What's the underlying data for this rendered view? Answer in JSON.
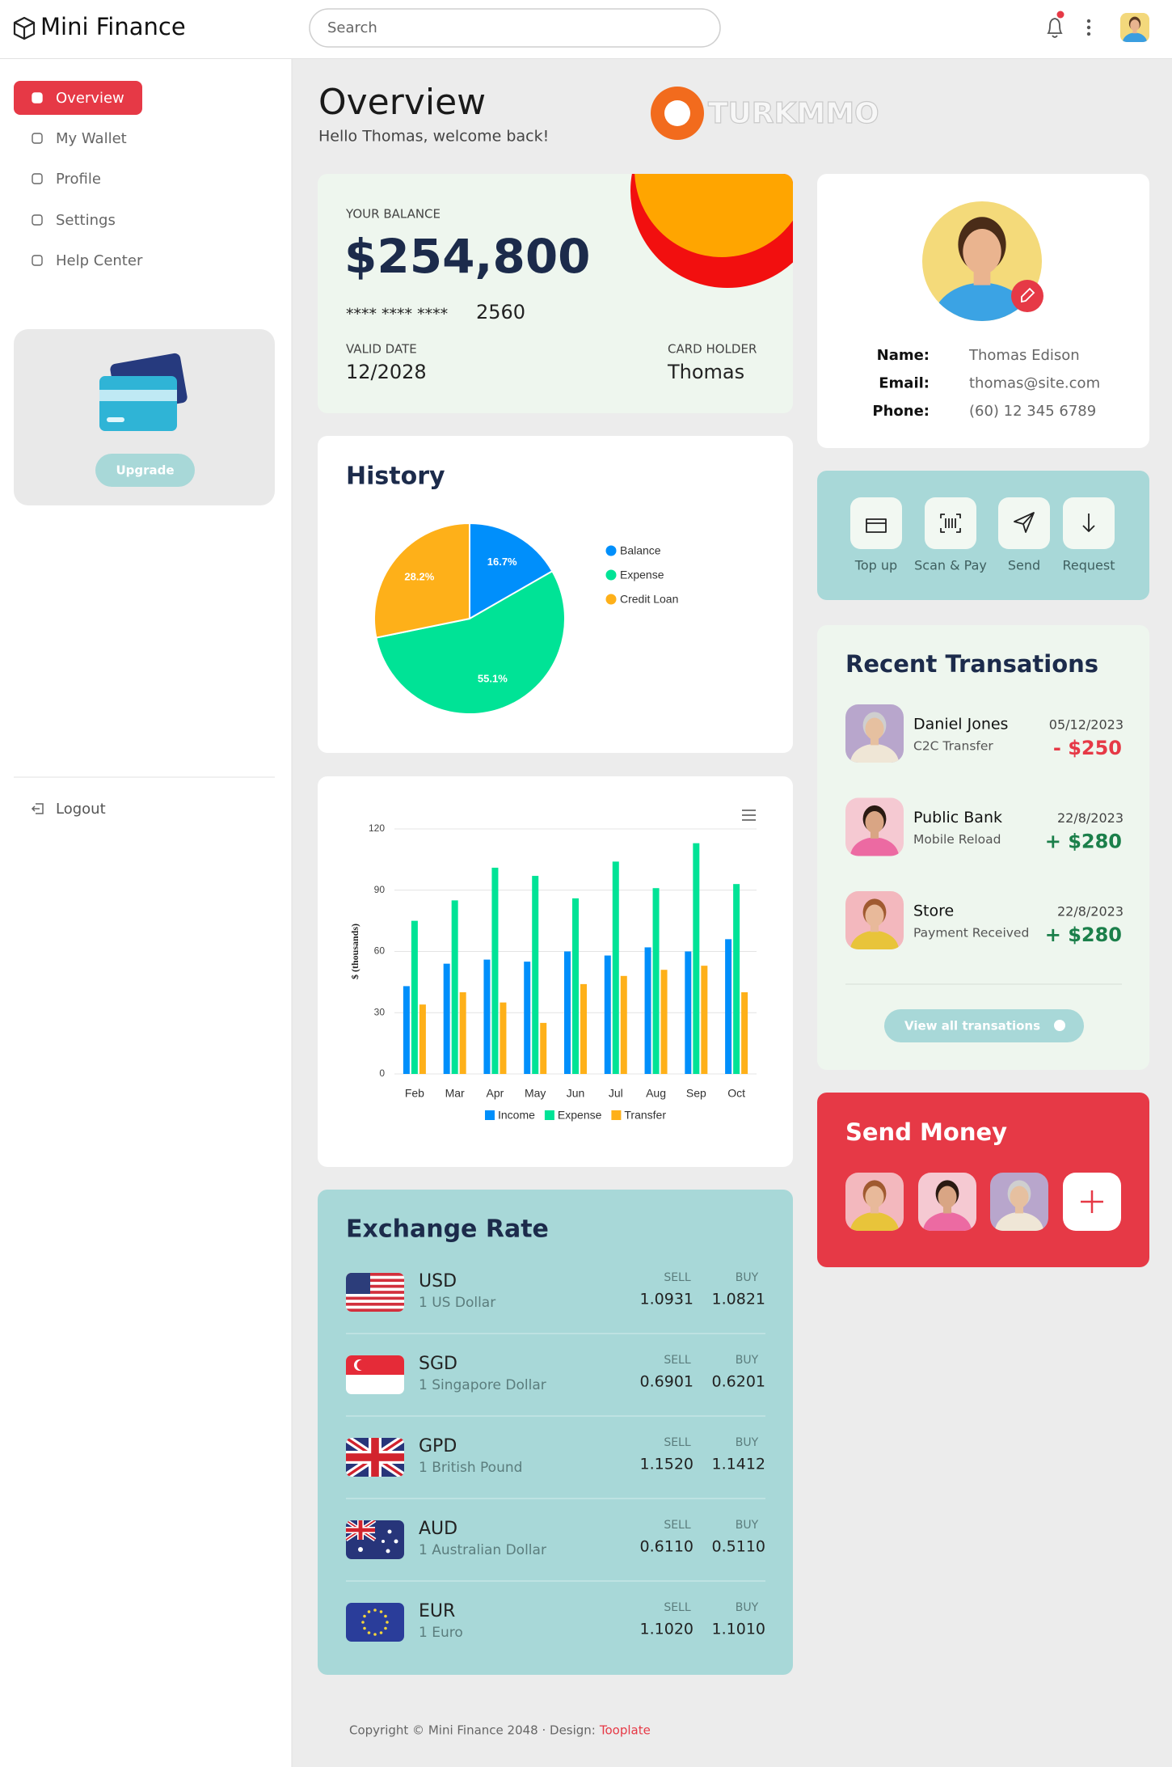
{
  "header": {
    "brand": "Mini Finance",
    "search_placeholder": "Search"
  },
  "sidebar": {
    "nav": [
      "Overview",
      "My Wallet",
      "Profile",
      "Settings",
      "Help Center"
    ],
    "upgrade": "Upgrade",
    "logout": "Logout"
  },
  "overview": {
    "title": "Overview",
    "subtitle": "Hello Thomas, welcome back!",
    "watermark": "TURKMMO"
  },
  "balance_card": {
    "label": "YOUR BALANCE",
    "amount": "$254,800",
    "masked": "**** **** ****",
    "last_digits": "2560",
    "valid_label": "VALID DATE",
    "valid": "12/2028",
    "holder_label": "CARD HOLDER",
    "holder": "Thomas"
  },
  "profile": {
    "fields": [
      {
        "label": "Name:",
        "value": "Thomas Edison"
      },
      {
        "label": "Email:",
        "value": "thomas@site.com"
      },
      {
        "label": "Phone:",
        "value": "(60) 12 345 6789"
      }
    ]
  },
  "actions": [
    "Top up",
    "Scan & Pay",
    "Send",
    "Request"
  ],
  "transactions": {
    "title": "Recent Transations",
    "button": "View all transations",
    "items": [
      {
        "name": "Daniel Jones",
        "type": "C2C Transfer",
        "date": "05/12/2023",
        "amount": "- $250",
        "color": "#e63946"
      },
      {
        "name": "Public Bank",
        "type": "Mobile Reload",
        "date": "22/8/2023",
        "amount": "+ $280",
        "color": "#1b7f4a"
      },
      {
        "name": "Store",
        "type": "Payment Received",
        "date": "22/8/2023",
        "amount": "+ $280",
        "color": "#1b7f4a"
      }
    ]
  },
  "send_money": {
    "title": "Send Money"
  },
  "exchange": {
    "title": "Exchange Rate",
    "sell_label": "SELL",
    "buy_label": "BUY",
    "rows": [
      {
        "code": "USD",
        "name": "1 US Dollar",
        "sell": "1.0931",
        "buy": "1.0821"
      },
      {
        "code": "SGD",
        "name": "1 Singapore Dollar",
        "sell": "0.6901",
        "buy": "0.6201"
      },
      {
        "code": "GPD",
        "name": "1 British Pound",
        "sell": "1.1520",
        "buy": "1.1412"
      },
      {
        "code": "AUD",
        "name": "1 Australian Dollar",
        "sell": "0.6110",
        "buy": "0.5110"
      },
      {
        "code": "EUR",
        "name": "1 Euro",
        "sell": "1.1020",
        "buy": "1.1010"
      }
    ]
  },
  "footer": {
    "text": "Copyright © Mini Finance 2048 · Design:",
    "link": "Tooplate"
  },
  "chart_data": [
    {
      "type": "pie",
      "title": "History",
      "categories": [
        "Balance",
        "Expense",
        "Credit Loan"
      ],
      "values": [
        16.7,
        55.1,
        28.2
      ],
      "value_labels": [
        "16.7%",
        "55.1%",
        "28.2%"
      ],
      "colors": [
        "#008ffb",
        "#00e396",
        "#feb019"
      ],
      "legend": "right"
    },
    {
      "type": "bar",
      "ylabel": "$ (thousands)",
      "categories": [
        "Feb",
        "Mar",
        "Apr",
        "May",
        "Jun",
        "Jul",
        "Aug",
        "Sep",
        "Oct"
      ],
      "series": [
        {
          "name": "Income",
          "color": "#008ffb",
          "values": [
            43,
            54,
            56,
            55,
            60,
            58,
            62,
            60,
            66
          ]
        },
        {
          "name": "Expense",
          "color": "#00e396",
          "values": [
            75,
            85,
            101,
            97,
            86,
            104,
            91,
            113,
            93
          ]
        },
        {
          "name": "Transfer",
          "color": "#feb019",
          "values": [
            34,
            40,
            35,
            25,
            44,
            48,
            51,
            53,
            40
          ]
        }
      ],
      "ylim": [
        0,
        120
      ],
      "yticks": [
        0,
        30,
        60,
        90,
        120
      ],
      "grid": true,
      "legend": "bottom"
    }
  ]
}
